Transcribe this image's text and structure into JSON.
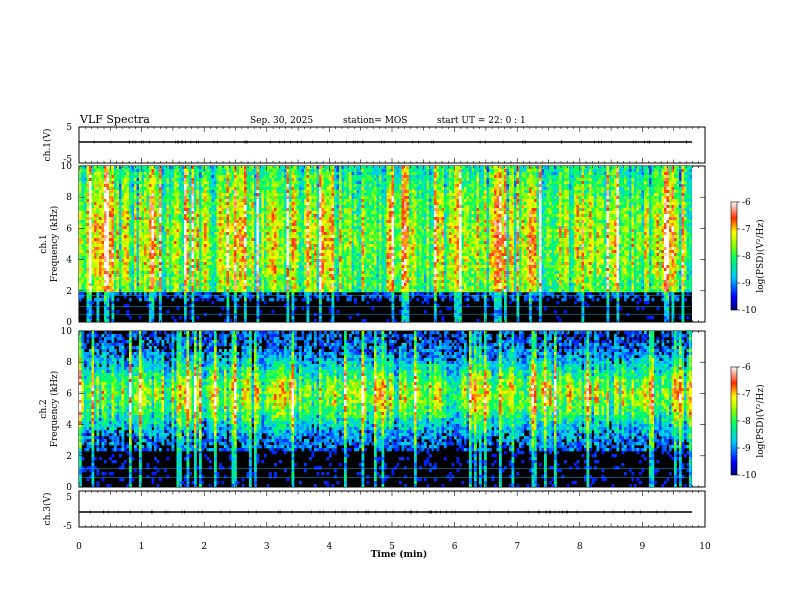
{
  "header": {
    "title": "VLF Spectra",
    "date": "Sep. 30, 2025",
    "station": "station= MOS",
    "start": "start  UT  =   22: 0   : 1"
  },
  "chart_data": [
    {
      "type": "line",
      "panel": "ch1-voltage",
      "ylabel": "ch.1(V)",
      "ylim": [
        -5,
        5
      ],
      "yticks": [
        "5",
        "-5"
      ],
      "series": [
        {
          "x": [
            0,
            9.8
          ],
          "y": [
            0,
            0
          ]
        }
      ]
    },
    {
      "type": "heatmap",
      "panel": "ch1-spectrogram",
      "ylabel": "ch.1",
      "ylabel2": "Frequency (kHz)",
      "ylim": [
        0,
        10
      ],
      "yticks": [
        "0",
        "2",
        "4",
        "6",
        "8",
        "10"
      ],
      "xlim": [
        0,
        9.8
      ],
      "colorbar": {
        "label": "log(PSD)(V²/Hz)",
        "ticks": [
          "-6",
          "-7",
          "-8",
          "-9",
          "-10"
        ],
        "range": [
          -10,
          -6
        ]
      }
    },
    {
      "type": "heatmap",
      "panel": "ch2-spectrogram",
      "ylabel": "ch.2",
      "ylabel2": "Frequency (kHz)",
      "ylim": [
        0,
        10
      ],
      "yticks": [
        "0",
        "2",
        "4",
        "6",
        "8",
        "10"
      ],
      "xlim": [
        0,
        9.8
      ],
      "colorbar": {
        "label": "log(PSD)(V²/Hz)",
        "ticks": [
          "-6",
          "-7",
          "-8",
          "-9",
          "-10"
        ],
        "range": [
          -10,
          -6
        ]
      }
    },
    {
      "type": "line",
      "panel": "ch3-voltage",
      "ylabel": "ch.3(V)",
      "ylim": [
        -5,
        5
      ],
      "yticks": [
        "5",
        "-5"
      ],
      "series": [
        {
          "x": [
            0,
            9.8
          ],
          "y": [
            0,
            0
          ]
        }
      ]
    }
  ],
  "xaxis": {
    "label": "Time  (min)",
    "ticks": [
      "0",
      "1",
      "2",
      "3",
      "4",
      "5",
      "6",
      "7",
      "8",
      "9",
      "10"
    ],
    "xlim": [
      0,
      10
    ]
  },
  "colors": {
    "background": "#000000",
    "hline": "#00c8ff"
  }
}
